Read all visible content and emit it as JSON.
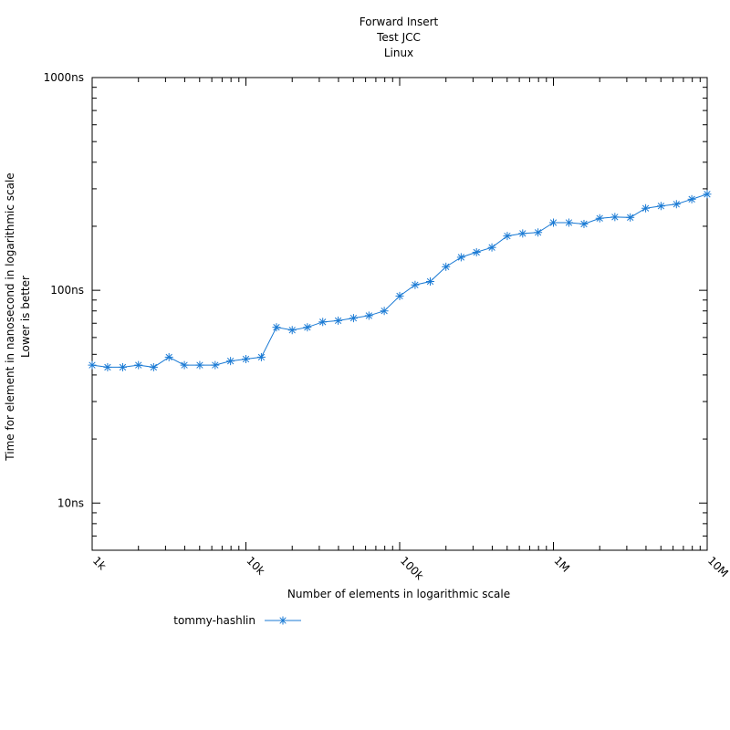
{
  "chart_data": {
    "type": "line",
    "title": [
      "Forward Insert",
      "Test JCC",
      "Linux"
    ],
    "xlabel": "Number of elements in logarithmic scale",
    "ylabel": [
      "Time for element in nanosecond in logarithmic scale",
      "Lower is better"
    ],
    "x_scale": "log",
    "y_scale": "log",
    "xlim": [
      1000,
      10000000
    ],
    "ylim": [
      6,
      1000
    ],
    "x_ticks": [
      {
        "value": 1000,
        "label": "1k"
      },
      {
        "value": 10000,
        "label": "10k"
      },
      {
        "value": 100000,
        "label": "100k"
      },
      {
        "value": 1000000,
        "label": "1M"
      },
      {
        "value": 10000000,
        "label": "10M"
      }
    ],
    "y_ticks": [
      {
        "value": 10,
        "label": "10ns"
      },
      {
        "value": 100,
        "label": "100ns"
      },
      {
        "value": 1000,
        "label": "1000ns"
      }
    ],
    "grid": false,
    "legend_position": "bottom-left",
    "series": [
      {
        "name": "tommy-hashlin",
        "color": "#1a7ad4",
        "marker": "asterisk",
        "x": [
          1000,
          1260,
          1580,
          2000,
          2510,
          3160,
          3980,
          5010,
          6310,
          7940,
          10000,
          12600,
          15800,
          20000,
          25100,
          31600,
          39800,
          50100,
          63100,
          79400,
          100000,
          126000,
          158000,
          200000,
          251000,
          316000,
          398000,
          501000,
          631000,
          794000,
          1000000,
          1260000,
          1580000,
          2000000,
          2510000,
          3160000,
          3980000,
          5010000,
          6310000,
          7940000,
          10000000
        ],
        "y": [
          44.5,
          43.5,
          43.5,
          44.5,
          43.5,
          48.5,
          44.5,
          44.5,
          44.5,
          46.5,
          47.5,
          48.5,
          67,
          65,
          67,
          71,
          72,
          74,
          76,
          80,
          94,
          106,
          110,
          129,
          143,
          151,
          159,
          180,
          185,
          187,
          208,
          208,
          205,
          218,
          221,
          220,
          243,
          249,
          254,
          268,
          283
        ]
      }
    ]
  }
}
